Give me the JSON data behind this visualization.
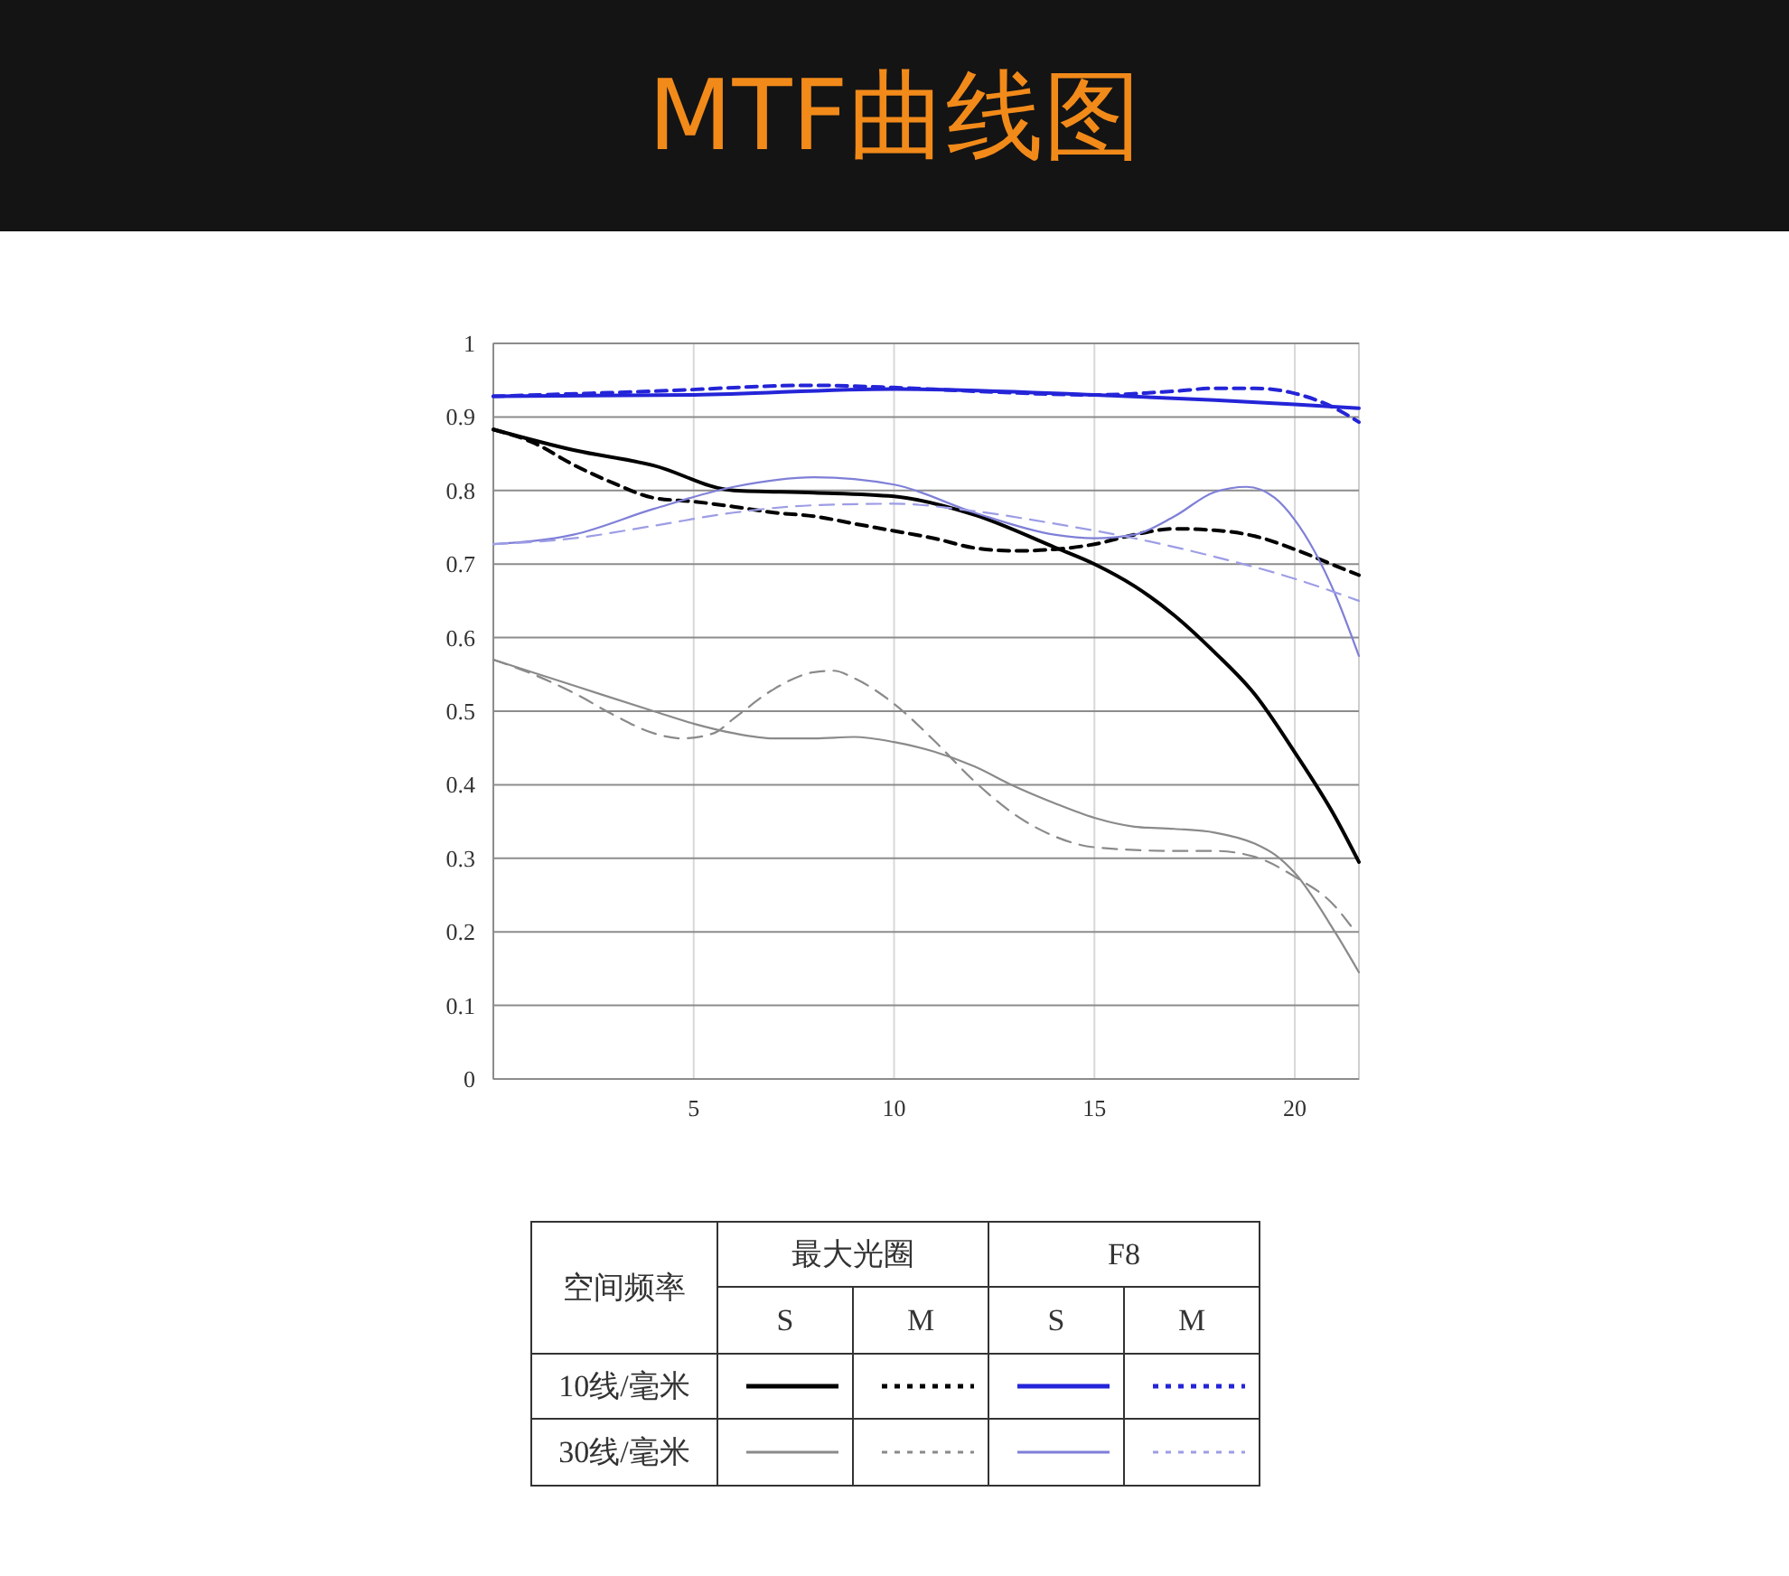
{
  "chart_data": {
    "type": "line",
    "title": "MTF曲线图",
    "xlim": [
      0,
      21.6
    ],
    "xticks": [
      5,
      10,
      15,
      20
    ],
    "ylim": [
      0,
      1
    ],
    "yticks": [
      0,
      0.1,
      0.2,
      0.3,
      0.4,
      0.5,
      0.6,
      0.7,
      0.8,
      0.9,
      1
    ],
    "grid": true,
    "annotations": [
      "空间频率",
      "最大光圈",
      "F8",
      "S",
      "M",
      "S",
      "M",
      "10线/毫米",
      "30线/毫米"
    ],
    "series": [
      {
        "color": "#000000",
        "line_style": "solid",
        "x": [
          0,
          2,
          4,
          6,
          8,
          10,
          12,
          14,
          15,
          16,
          17,
          18,
          19,
          20,
          21,
          21.6
        ],
        "values": [
          0.883,
          0.855,
          0.834,
          0.8,
          0.797,
          0.792,
          0.767,
          0.723,
          0.7,
          0.67,
          0.63,
          0.58,
          0.523,
          0.444,
          0.357,
          0.295
        ]
      },
      {
        "color": "#000000",
        "line_style": "dashed",
        "x": [
          0,
          1,
          2,
          3,
          4,
          5,
          6,
          7,
          8,
          9,
          10,
          11,
          12,
          13,
          14,
          15,
          16,
          17,
          18,
          19,
          20,
          21,
          21.6
        ],
        "values": [
          0.883,
          0.865,
          0.835,
          0.81,
          0.79,
          0.785,
          0.778,
          0.77,
          0.765,
          0.755,
          0.745,
          0.735,
          0.722,
          0.718,
          0.72,
          0.727,
          0.74,
          0.748,
          0.746,
          0.738,
          0.72,
          0.698,
          0.685
        ]
      },
      {
        "color": "#2424d8",
        "line_style": "solid",
        "x": [
          0,
          5,
          10,
          15,
          18,
          20,
          21.6
        ],
        "values": [
          0.928,
          0.93,
          0.938,
          0.93,
          0.923,
          0.917,
          0.912
        ]
      },
      {
        "color": "#2424d8",
        "line_style": "dashed",
        "x": [
          0,
          4,
          8,
          10,
          12,
          15,
          17,
          18,
          19,
          20,
          21,
          21.6
        ],
        "values": [
          0.928,
          0.935,
          0.943,
          0.94,
          0.935,
          0.93,
          0.935,
          0.939,
          0.939,
          0.932,
          0.912,
          0.893
        ]
      },
      {
        "color": "#8a8a8a",
        "line_style": "solid",
        "x": [
          0,
          2,
          4,
          5,
          6,
          7,
          8,
          9,
          10,
          11,
          12,
          13,
          14,
          15,
          16,
          17,
          18,
          19,
          19.5,
          20,
          21,
          21.6
        ],
        "values": [
          0.57,
          0.535,
          0.5,
          0.483,
          0.47,
          0.463,
          0.463,
          0.465,
          0.458,
          0.445,
          0.425,
          0.398,
          0.375,
          0.355,
          0.343,
          0.34,
          0.335,
          0.32,
          0.305,
          0.28,
          0.2,
          0.145
        ]
      },
      {
        "color": "#8a8a8a",
        "line_style": "dashed",
        "x": [
          0,
          1,
          2,
          3,
          4,
          4.7,
          5.5,
          6,
          7,
          8,
          8.5,
          9,
          10,
          11,
          12,
          13,
          14,
          15,
          17,
          18,
          19,
          20,
          21,
          21.4
        ],
        "values": [
          0.57,
          0.55,
          0.525,
          0.495,
          0.47,
          0.463,
          0.47,
          0.49,
          0.53,
          0.553,
          0.555,
          0.545,
          0.51,
          0.46,
          0.405,
          0.36,
          0.33,
          0.315,
          0.31,
          0.31,
          0.302,
          0.275,
          0.235,
          0.208
        ]
      },
      {
        "color": "#7f7fd8",
        "line_style": "solid",
        "x": [
          0,
          2,
          4,
          6,
          8,
          10,
          12,
          14,
          15,
          16,
          17,
          18,
          18.8,
          19.5,
          20,
          21,
          21.6
        ],
        "values": [
          0.727,
          0.74,
          0.775,
          0.805,
          0.818,
          0.808,
          0.77,
          0.74,
          0.735,
          0.74,
          0.765,
          0.798,
          0.805,
          0.79,
          0.76,
          0.66,
          0.575
        ]
      },
      {
        "color": "#9d9de6",
        "line_style": "dashed",
        "x": [
          0,
          2,
          4,
          6,
          8,
          10,
          12,
          14,
          16,
          18,
          20,
          21.6
        ],
        "values": [
          0.727,
          0.735,
          0.752,
          0.77,
          0.78,
          0.782,
          0.772,
          0.755,
          0.735,
          0.71,
          0.68,
          0.65
        ]
      }
    ]
  }
}
